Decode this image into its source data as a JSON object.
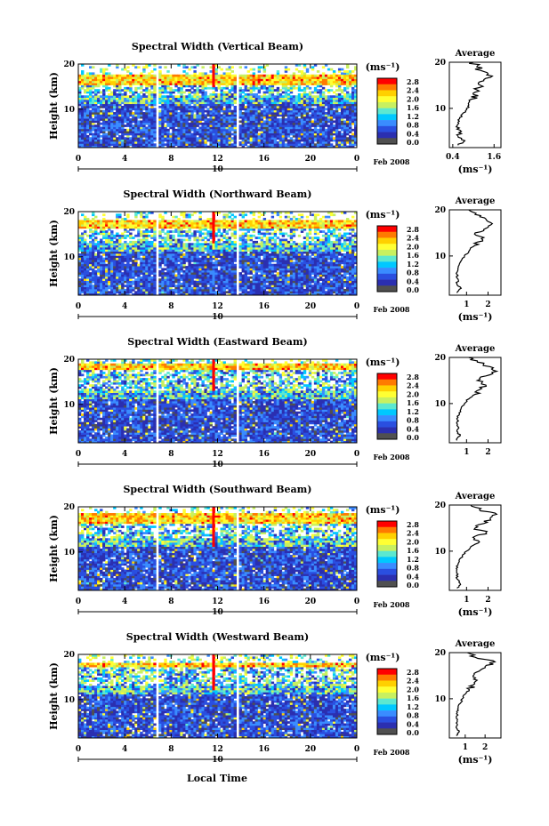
{
  "figure": {
    "date_label": "Feb 2008",
    "date_marker": "10",
    "xlabel_bottom": "Local Time"
  },
  "colorbar": {
    "unit_label": "(ms⁻¹)",
    "ticks": [
      "2.8",
      "2.4",
      "2.0",
      "1.6",
      "1.2",
      "0.8",
      "0.4",
      "0.0"
    ],
    "colors": [
      "#ff0000",
      "#ff7a00",
      "#ffd000",
      "#ffff33",
      "#c8f060",
      "#5ce8d0",
      "#00c8ff",
      "#3a8cff",
      "#2a4fe0",
      "#2b2fb0",
      "#505050"
    ]
  },
  "chart_data": [
    {
      "type": "heatmap",
      "title": "Spectral Width (Vertical Beam)",
      "ylabel": "Height (km)",
      "x_ticks": [
        "0",
        "4",
        "8",
        "12",
        "16",
        "20",
        "0"
      ],
      "y_ticks": [
        "20",
        "10"
      ],
      "xlim": [
        0,
        24
      ],
      "ylim": [
        1.5,
        20
      ],
      "gaps_local_time": [
        6.7,
        13.8
      ],
      "spike_local_time": 11.6,
      "spike_height_range": [
        15,
        20
      ],
      "upper_layer_km": [
        15.5,
        17.5
      ],
      "profile": {
        "title": "Average",
        "xlabel": "(ms⁻¹)",
        "x_ticks": [
          "0.4",
          "1.6"
        ],
        "y_ticks": [
          "20",
          "10"
        ],
        "xlim": [
          0.3,
          1.8
        ],
        "heights": [
          2,
          3,
          4,
          5,
          6,
          7,
          8,
          9,
          10,
          11,
          12,
          13,
          14,
          15,
          16,
          17,
          18,
          19,
          20
        ],
        "values": [
          0.55,
          0.75,
          0.55,
          0.65,
          0.5,
          0.55,
          0.6,
          0.7,
          0.8,
          0.85,
          0.95,
          1.0,
          1.1,
          1.2,
          1.3,
          1.55,
          1.3,
          1.1,
          1.0
        ]
      }
    },
    {
      "type": "heatmap",
      "title": "Spectral Width (Northward Beam)",
      "ylabel": "Height (km)",
      "x_ticks": [
        "0",
        "4",
        "8",
        "12",
        "16",
        "20",
        "0"
      ],
      "y_ticks": [
        "20",
        "10"
      ],
      "xlim": [
        0,
        24
      ],
      "ylim": [
        1.5,
        20
      ],
      "gaps_local_time": [
        6.7,
        13.8
      ],
      "spike_local_time": 11.6,
      "spike_height_range": [
        13,
        20
      ],
      "upper_layer_km": [
        16.5,
        18
      ],
      "profile": {
        "title": "Average",
        "xlabel": "(ms⁻¹)",
        "x_ticks": [
          "1",
          "2"
        ],
        "y_ticks": [
          "20",
          "10"
        ],
        "xlim": [
          0.2,
          2.6
        ],
        "heights": [
          2,
          3,
          4,
          5,
          6,
          7,
          8,
          9,
          10,
          11,
          12,
          13,
          14,
          15,
          16,
          17,
          18,
          19,
          20
        ],
        "values": [
          0.55,
          0.75,
          0.55,
          0.6,
          0.55,
          0.6,
          0.65,
          0.75,
          0.9,
          1.1,
          1.3,
          1.5,
          1.8,
          1.4,
          1.9,
          2.2,
          1.9,
          1.4,
          1.1
        ]
      }
    },
    {
      "type": "heatmap",
      "title": "Spectral Width (Eastward Beam)",
      "ylabel": "Height (km)",
      "x_ticks": [
        "0",
        "4",
        "8",
        "12",
        "16",
        "20",
        "0"
      ],
      "y_ticks": [
        "20",
        "10"
      ],
      "xlim": [
        0,
        24
      ],
      "ylim": [
        1.5,
        20
      ],
      "gaps_local_time": [
        6.7,
        13.8
      ],
      "spike_local_time": 11.6,
      "spike_height_range": [
        13,
        20
      ],
      "upper_layer_km": [
        17.5,
        19
      ],
      "profile": {
        "title": "Average",
        "xlabel": "",
        "x_ticks": [
          "1",
          "2"
        ],
        "y_ticks": [
          "20",
          "10"
        ],
        "xlim": [
          0.2,
          2.6
        ],
        "heights": [
          2,
          3,
          4,
          5,
          6,
          7,
          8,
          9,
          10,
          11,
          12,
          13,
          14,
          15,
          16,
          17,
          18,
          19,
          20
        ],
        "values": [
          0.55,
          0.7,
          0.55,
          0.6,
          0.55,
          0.6,
          0.65,
          0.75,
          0.9,
          1.1,
          1.4,
          1.6,
          1.9,
          1.5,
          1.9,
          2.4,
          2.1,
          1.5,
          1.1
        ]
      }
    },
    {
      "type": "heatmap",
      "title": "Spectral Width (Southward Beam)",
      "ylabel": "Height (km)",
      "x_ticks": [
        "0",
        "4",
        "8",
        "12",
        "16",
        "20",
        "0"
      ],
      "y_ticks": [
        "20",
        "10"
      ],
      "xlim": [
        0,
        24
      ],
      "ylim": [
        1.5,
        20
      ],
      "gaps_local_time": [
        6.7,
        13.8
      ],
      "spike_local_time": 11.6,
      "spike_height_range": [
        11,
        20
      ],
      "upper_layer_km": [
        16.5,
        18.5
      ],
      "profile": {
        "title": "Average",
        "xlabel": "(ms⁻¹)",
        "x_ticks": [
          "1",
          "2"
        ],
        "y_ticks": [
          "20",
          "10"
        ],
        "xlim": [
          0.2,
          2.6
        ],
        "heights": [
          2,
          3,
          4,
          5,
          6,
          7,
          8,
          9,
          10,
          11,
          12,
          13,
          14,
          15,
          16,
          17,
          18,
          19,
          20
        ],
        "values": [
          0.55,
          0.7,
          0.55,
          0.6,
          0.55,
          0.6,
          0.65,
          0.8,
          1.0,
          1.2,
          1.6,
          1.3,
          1.9,
          1.4,
          1.8,
          2.1,
          2.4,
          1.6,
          1.2
        ]
      }
    },
    {
      "type": "heatmap",
      "title": "Spectral Width (Westward Beam)",
      "ylabel": "Height (km)",
      "x_ticks": [
        "0",
        "4",
        "8",
        "12",
        "16",
        "20",
        "0"
      ],
      "y_ticks": [
        "20",
        "10"
      ],
      "xlim": [
        0,
        24
      ],
      "ylim": [
        1.5,
        20
      ],
      "gaps_local_time": [
        6.7,
        13.8
      ],
      "spike_local_time": 11.6,
      "spike_height_range": [
        12,
        20
      ],
      "upper_layer_km": [
        17.2,
        18.2
      ],
      "profile": {
        "title": "Average",
        "xlabel": "(ms⁻¹)",
        "x_ticks": [
          "1",
          "2"
        ],
        "y_ticks": [
          "20",
          "10"
        ],
        "xlim": [
          0.2,
          2.8
        ],
        "heights": [
          2,
          3,
          4,
          5,
          6,
          7,
          8,
          9,
          10,
          11,
          12,
          13,
          14,
          15,
          16,
          17,
          18,
          19,
          20
        ],
        "values": [
          0.55,
          0.7,
          0.55,
          0.6,
          0.55,
          0.6,
          0.65,
          0.75,
          0.85,
          1.0,
          1.2,
          1.4,
          1.6,
          1.4,
          1.7,
          2.0,
          2.5,
          1.5,
          1.1
        ]
      }
    }
  ]
}
